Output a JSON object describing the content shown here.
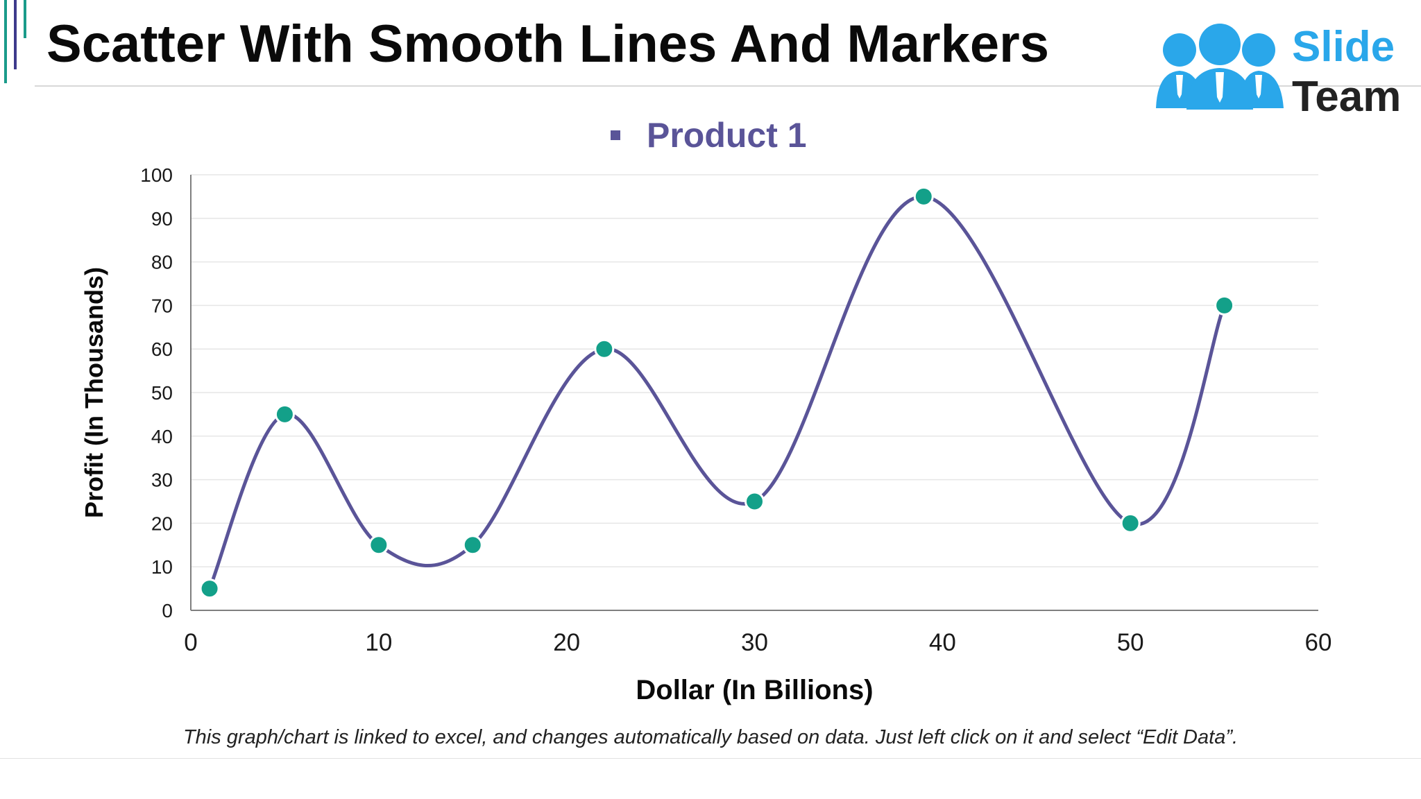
{
  "slide": {
    "title": "Scatter With Smooth Lines And Markers",
    "footnote": "This graph/chart is linked to excel, and changes automatically based on data. Just left click on it and select “Edit Data”."
  },
  "logo": {
    "word1": "Slide",
    "word2": "Team",
    "colors": {
      "people": "#2aa7ea",
      "team_text": "#222222"
    }
  },
  "colors": {
    "line": "#5a5498",
    "marker": "#13a089",
    "marker_stroke": "#ffffff",
    "legend": "#5a5498",
    "grid": "#e6e6e6",
    "axis": "#7f7f7f"
  },
  "chart_data": {
    "type": "scatter",
    "style": "smooth-lines-with-markers",
    "title": "",
    "xlabel": "Dollar (In Billions)",
    "ylabel": "Profit  (In Thousands)",
    "xlim": [
      0,
      60
    ],
    "ylim": [
      0,
      100
    ],
    "x_ticks": [
      0,
      10,
      20,
      30,
      40,
      50,
      60
    ],
    "y_ticks": [
      0,
      10,
      20,
      30,
      40,
      50,
      60,
      70,
      80,
      90,
      100
    ],
    "grid": "horizontal",
    "legend_position": "top",
    "series": [
      {
        "name": "Product 1",
        "points": [
          {
            "x": 1,
            "y": 5
          },
          {
            "x": 5,
            "y": 45
          },
          {
            "x": 10,
            "y": 15
          },
          {
            "x": 15,
            "y": 15
          },
          {
            "x": 22,
            "y": 60
          },
          {
            "x": 30,
            "y": 25
          },
          {
            "x": 39,
            "y": 95
          },
          {
            "x": 50,
            "y": 20
          },
          {
            "x": 55,
            "y": 70
          }
        ]
      }
    ]
  }
}
